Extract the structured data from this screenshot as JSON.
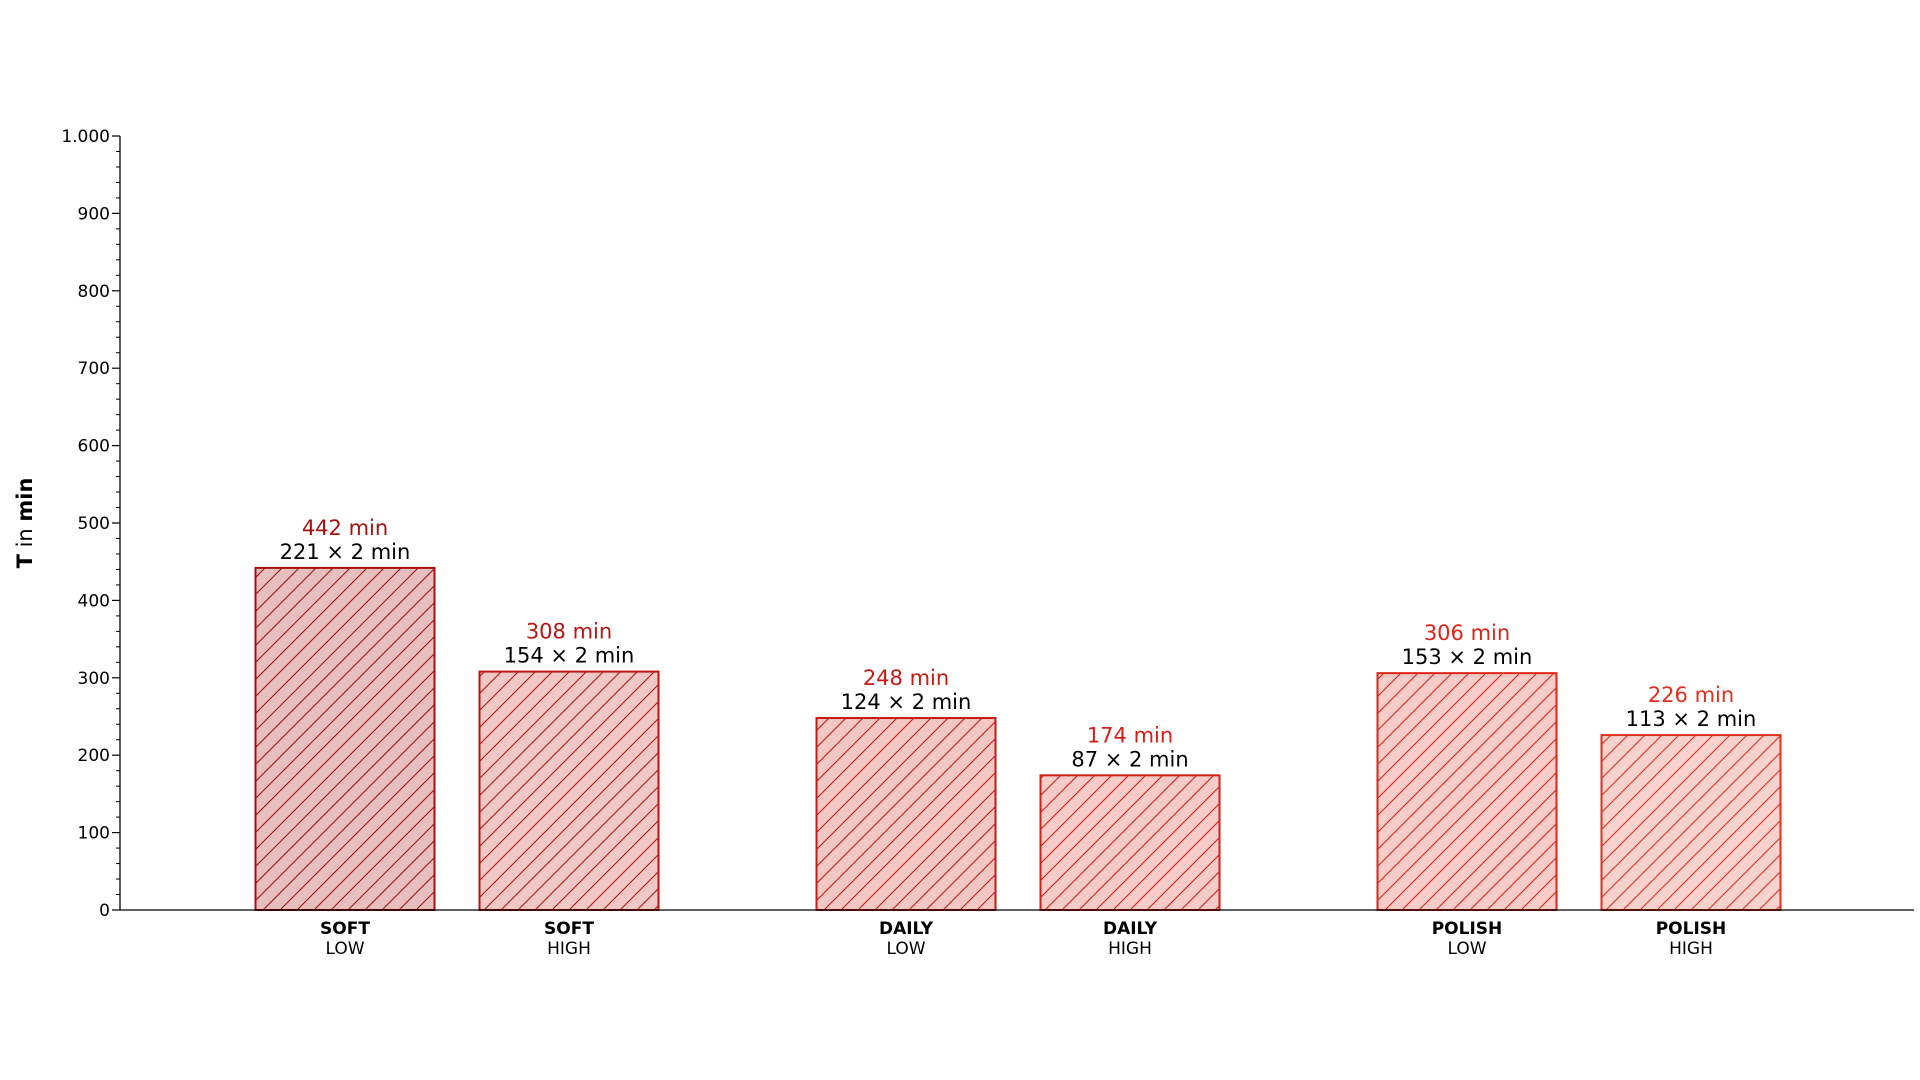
{
  "chart_data": {
    "type": "bar",
    "ylabel": {
      "symbol": "T",
      "connector": " in ",
      "unit": "min"
    },
    "ylim": [
      0,
      1000
    ],
    "yticks": [
      0,
      100,
      200,
      300,
      400,
      500,
      600,
      700,
      800,
      900,
      1000
    ],
    "ytick_labels": [
      "0",
      "100",
      "200",
      "300",
      "400",
      "500",
      "600",
      "700",
      "800",
      "900",
      "1.000"
    ],
    "y_minor_step": 20,
    "grid": false,
    "hatch": "diagonal",
    "bars": [
      {
        "group": "SOFT",
        "level": "LOW",
        "value": 442,
        "total_label": "442 min",
        "detail_label": "221 × 2 min",
        "fill": "#e8bfbf",
        "stroke": "#a81010",
        "label_color": "#a81010"
      },
      {
        "group": "SOFT",
        "level": "HIGH",
        "value": 308,
        "total_label": "308 min",
        "detail_label": "154 × 2 min",
        "fill": "#f0c8c6",
        "stroke": "#b81612",
        "label_color": "#b81612"
      },
      {
        "group": "DAILY",
        "level": "LOW",
        "value": 248,
        "total_label": "248 min",
        "detail_label": "124 × 2 min",
        "fill": "#f3c7c4",
        "stroke": "#c81a14",
        "label_color": "#c81a14"
      },
      {
        "group": "DAILY",
        "level": "HIGH",
        "value": 174,
        "total_label": "174 min",
        "detail_label": "87 × 2 min",
        "fill": "#f6cbc8",
        "stroke": "#d41e16",
        "label_color": "#d41e16"
      },
      {
        "group": "POLISH",
        "level": "LOW",
        "value": 306,
        "total_label": "306 min",
        "detail_label": "153 × 2 min",
        "fill": "#f8cdc9",
        "stroke": "#dc2418",
        "label_color": "#dc2418"
      },
      {
        "group": "POLISH",
        "level": "HIGH",
        "value": 226,
        "total_label": "226 min",
        "detail_label": "113 × 2 min",
        "fill": "#fad2cd",
        "stroke": "#e2301c",
        "label_color": "#e2301c"
      }
    ]
  }
}
